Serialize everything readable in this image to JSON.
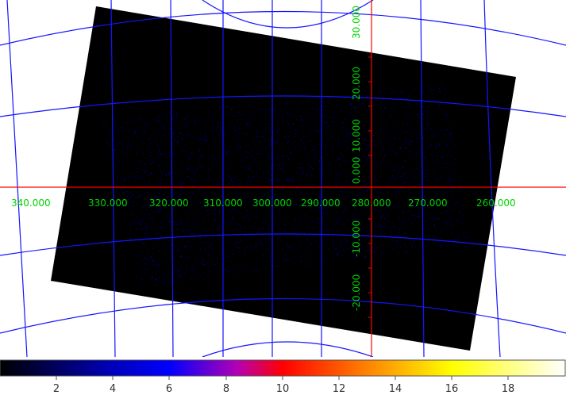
{
  "image": {
    "ra_labels": [
      "340.000",
      "330.000",
      "320.000",
      "310.000",
      "300.000",
      "290.000",
      "280.000",
      "270.000",
      "260.000"
    ],
    "dec_labels": [
      "30.000",
      "20.000",
      "10.000",
      "0.000",
      "-10.000",
      "-20.000"
    ]
  },
  "colorbar": {
    "tick_labels": [
      "2",
      "4",
      "6",
      "8",
      "10",
      "12",
      "14",
      "16",
      "18"
    ],
    "colors": [
      "#000000",
      "#0000ff",
      "#ff0000",
      "#ffff00",
      "#ffffff"
    ]
  },
  "colors": {
    "background": "#ffffff",
    "image_fill": "#000000",
    "grid_lines": "#1515ff",
    "axis_lines": "#ff0000",
    "axis_labels": "#00d400"
  }
}
